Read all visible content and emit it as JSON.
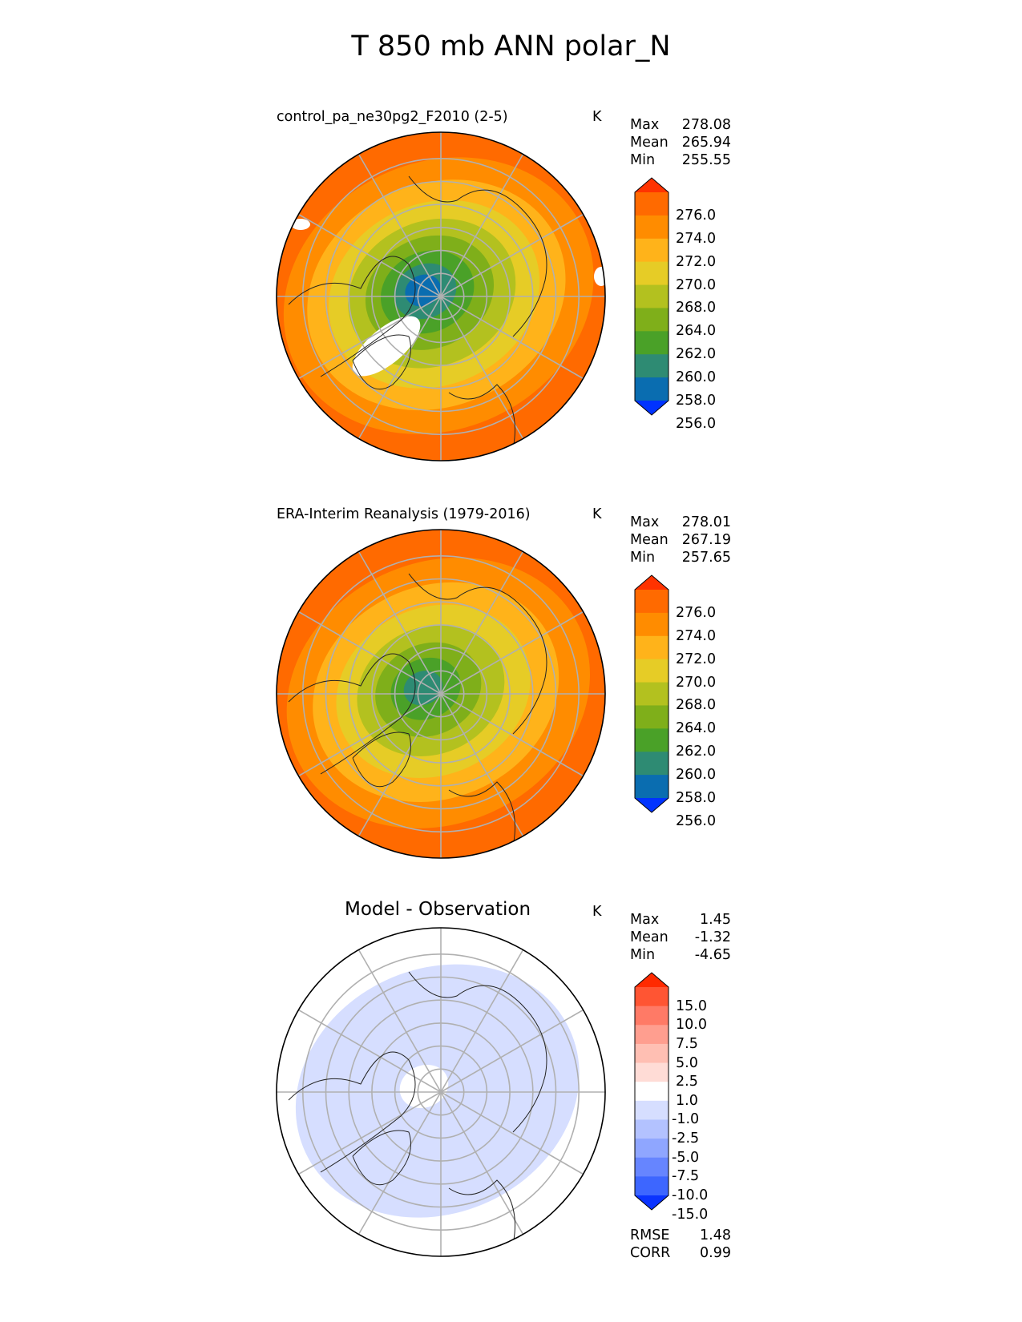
{
  "title": "T 850 mb ANN polar_N",
  "panels": [
    {
      "id": "test",
      "title": "control_pa_ne30pg2_F2010 (2-5)",
      "units": "K",
      "stats": [
        {
          "label": "Max",
          "value": "278.08"
        },
        {
          "label": "Mean",
          "value": "265.94"
        },
        {
          "label": "Min",
          "value": "255.55"
        }
      ]
    },
    {
      "id": "ref",
      "title": "ERA-Interim Reanalysis (1979-2016)",
      "units": "K",
      "stats": [
        {
          "label": "Max",
          "value": "278.01"
        },
        {
          "label": "Mean",
          "value": "267.19"
        },
        {
          "label": "Min",
          "value": "257.65"
        }
      ]
    },
    {
      "id": "diff",
      "title": "Model - Observation",
      "units": "K",
      "stats": [
        {
          "label": "Max",
          "value": "1.45"
        },
        {
          "label": "Mean",
          "value": "-1.32"
        },
        {
          "label": "Min",
          "value": "-4.65"
        }
      ],
      "metrics": [
        {
          "label": "RMSE",
          "value": "1.48"
        },
        {
          "label": "CORR",
          "value": "0.99"
        }
      ]
    }
  ],
  "chart_data": [
    {
      "type": "polar_contour_map",
      "panel": "test",
      "projection": "north polar stereographic",
      "title": "control_pa_ne30pg2_F2010 (2-5)",
      "units": "K",
      "colorbar": {
        "levels": [
          "276.0",
          "274.0",
          "272.0",
          "270.0",
          "268.0",
          "264.0",
          "262.0",
          "260.0",
          "258.0",
          "256.0"
        ],
        "colors": [
          "#ff3300",
          "#ff6a00",
          "#ff8c00",
          "#ffb31a",
          "#e6cc26",
          "#b3c11f",
          "#7faf1a",
          "#4aa128",
          "#2e8b73",
          "#0a6db0",
          "#0033ff"
        ],
        "extend": "both"
      },
      "field_rings_outer_to_pole": [
        "#ff6a00",
        "#ff8c00",
        "#ffb31a",
        "#e6cc26",
        "#b3c11f",
        "#7faf1a",
        "#4aa128",
        "#2e8b73",
        "#0a6db0"
      ]
    },
    {
      "type": "polar_contour_map",
      "panel": "ref",
      "projection": "north polar stereographic",
      "title": "ERA-Interim Reanalysis (1979-2016)",
      "units": "K",
      "colorbar": {
        "levels": [
          "276.0",
          "274.0",
          "272.0",
          "270.0",
          "268.0",
          "264.0",
          "262.0",
          "260.0",
          "258.0",
          "256.0"
        ],
        "colors": [
          "#ff3300",
          "#ff6a00",
          "#ff8c00",
          "#ffb31a",
          "#e6cc26",
          "#b3c11f",
          "#7faf1a",
          "#4aa128",
          "#2e8b73",
          "#0a6db0",
          "#0033ff"
        ],
        "extend": "both"
      },
      "field_rings_outer_to_pole": [
        "#ff6a00",
        "#ff8c00",
        "#ffb31a",
        "#e6cc26",
        "#b3c11f",
        "#7faf1a",
        "#4aa128",
        "#2e8b73"
      ]
    },
    {
      "type": "polar_contour_map",
      "panel": "diff",
      "projection": "north polar stereographic",
      "title": "Model - Observation",
      "units": "K",
      "colorbar": {
        "levels": [
          "15.0",
          "10.0",
          "7.5",
          "5.0",
          "2.5",
          "1.0",
          "-1.0",
          "-2.5",
          "-5.0",
          "-7.5",
          "-10.0",
          "-15.0"
        ],
        "colors": [
          "#ff2a00",
          "#ff5533",
          "#ff7a66",
          "#ff9e8f",
          "#ffbfb3",
          "#ffdcd6",
          "#ffffff",
          "#d6deff",
          "#b3c2ff",
          "#8fa6ff",
          "#6685ff",
          "#3d66ff",
          "#0a33ff"
        ],
        "extend": "both"
      },
      "field_rings_outer_to_pole": [
        "#ffffff",
        "#d6deff",
        "#d6deff",
        "#d6deff",
        "#d6deff",
        "#ffffff"
      ]
    }
  ]
}
